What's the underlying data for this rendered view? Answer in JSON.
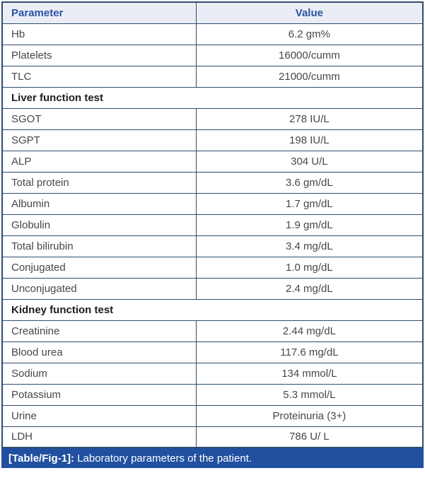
{
  "table": {
    "columns": [
      "Parameter",
      "Value"
    ],
    "rows": [
      {
        "type": "data",
        "parameter": "Hb",
        "value": "6.2 gm%"
      },
      {
        "type": "data",
        "parameter": "Platelets",
        "value": "16000/cumm"
      },
      {
        "type": "data",
        "parameter": "TLC",
        "value": "21000/cumm"
      },
      {
        "type": "section",
        "label": "Liver function test"
      },
      {
        "type": "data",
        "parameter": "SGOT",
        "value": "278 IU/L"
      },
      {
        "type": "data",
        "parameter": "SGPT",
        "value": "198 IU/L"
      },
      {
        "type": "data",
        "parameter": "ALP",
        "value": "304 U/L"
      },
      {
        "type": "data",
        "parameter": "Total protein",
        "value": "3.6 gm/dL"
      },
      {
        "type": "data",
        "parameter": "Albumin",
        "value": "1.7 gm/dL"
      },
      {
        "type": "data",
        "parameter": "Globulin",
        "value": "1.9 gm/dL"
      },
      {
        "type": "data",
        "parameter": "Total bilirubin",
        "value": "3.4 mg/dL"
      },
      {
        "type": "data",
        "parameter": "Conjugated",
        "value": "1.0 mg/dL"
      },
      {
        "type": "data",
        "parameter": "Unconjugated",
        "value": "2.4 mg/dL"
      },
      {
        "type": "section",
        "label": "Kidney function test"
      },
      {
        "type": "data",
        "parameter": "Creatinine",
        "value": "2.44 mg/dL"
      },
      {
        "type": "data",
        "parameter": "Blood urea",
        "value": "117.6 mg/dL"
      },
      {
        "type": "data",
        "parameter": "Sodium",
        "value": "134 mmol/L"
      },
      {
        "type": "data",
        "parameter": "Potassium",
        "value": "5.3 mmol/L"
      },
      {
        "type": "data",
        "parameter": "Urine",
        "value": "Proteinuria (3+)"
      },
      {
        "type": "data",
        "parameter": "LDH",
        "value": "786 U/ L"
      }
    ]
  },
  "caption": {
    "label": "[Table/Fig-1]:",
    "text": " Laboratory parameters of the patient."
  },
  "colors": {
    "grid": "#2e4d6e",
    "header_bg": "#ebedf6",
    "header_text": "#2b52a3",
    "body_text": "#474747",
    "section_text": "#1d1d1f",
    "caption_bg": "#2150a0",
    "caption_text": "#ffffff"
  },
  "chart_data": {
    "type": "table",
    "title": "[Table/Fig-1]: Laboratory parameters of the patient.",
    "columns": [
      "Parameter",
      "Value"
    ],
    "sections": [
      {
        "name": null,
        "rows": [
          [
            "Hb",
            "6.2 gm%"
          ],
          [
            "Platelets",
            "16000/cumm"
          ],
          [
            "TLC",
            "21000/cumm"
          ]
        ]
      },
      {
        "name": "Liver function test",
        "rows": [
          [
            "SGOT",
            "278 IU/L"
          ],
          [
            "SGPT",
            "198 IU/L"
          ],
          [
            "ALP",
            "304 U/L"
          ],
          [
            "Total protein",
            "3.6 gm/dL"
          ],
          [
            "Albumin",
            "1.7 gm/dL"
          ],
          [
            "Globulin",
            "1.9 gm/dL"
          ],
          [
            "Total bilirubin",
            "3.4 mg/dL"
          ],
          [
            "Conjugated",
            "1.0 mg/dL"
          ],
          [
            "Unconjugated",
            "2.4 mg/dL"
          ]
        ]
      },
      {
        "name": "Kidney function test",
        "rows": [
          [
            "Creatinine",
            "2.44 mg/dL"
          ],
          [
            "Blood urea",
            "117.6 mg/dL"
          ],
          [
            "Sodium",
            "134 mmol/L"
          ],
          [
            "Potassium",
            "5.3 mmol/L"
          ],
          [
            "Urine",
            "Proteinuria (3+)"
          ],
          [
            "LDH",
            "786 U/ L"
          ]
        ]
      }
    ]
  }
}
